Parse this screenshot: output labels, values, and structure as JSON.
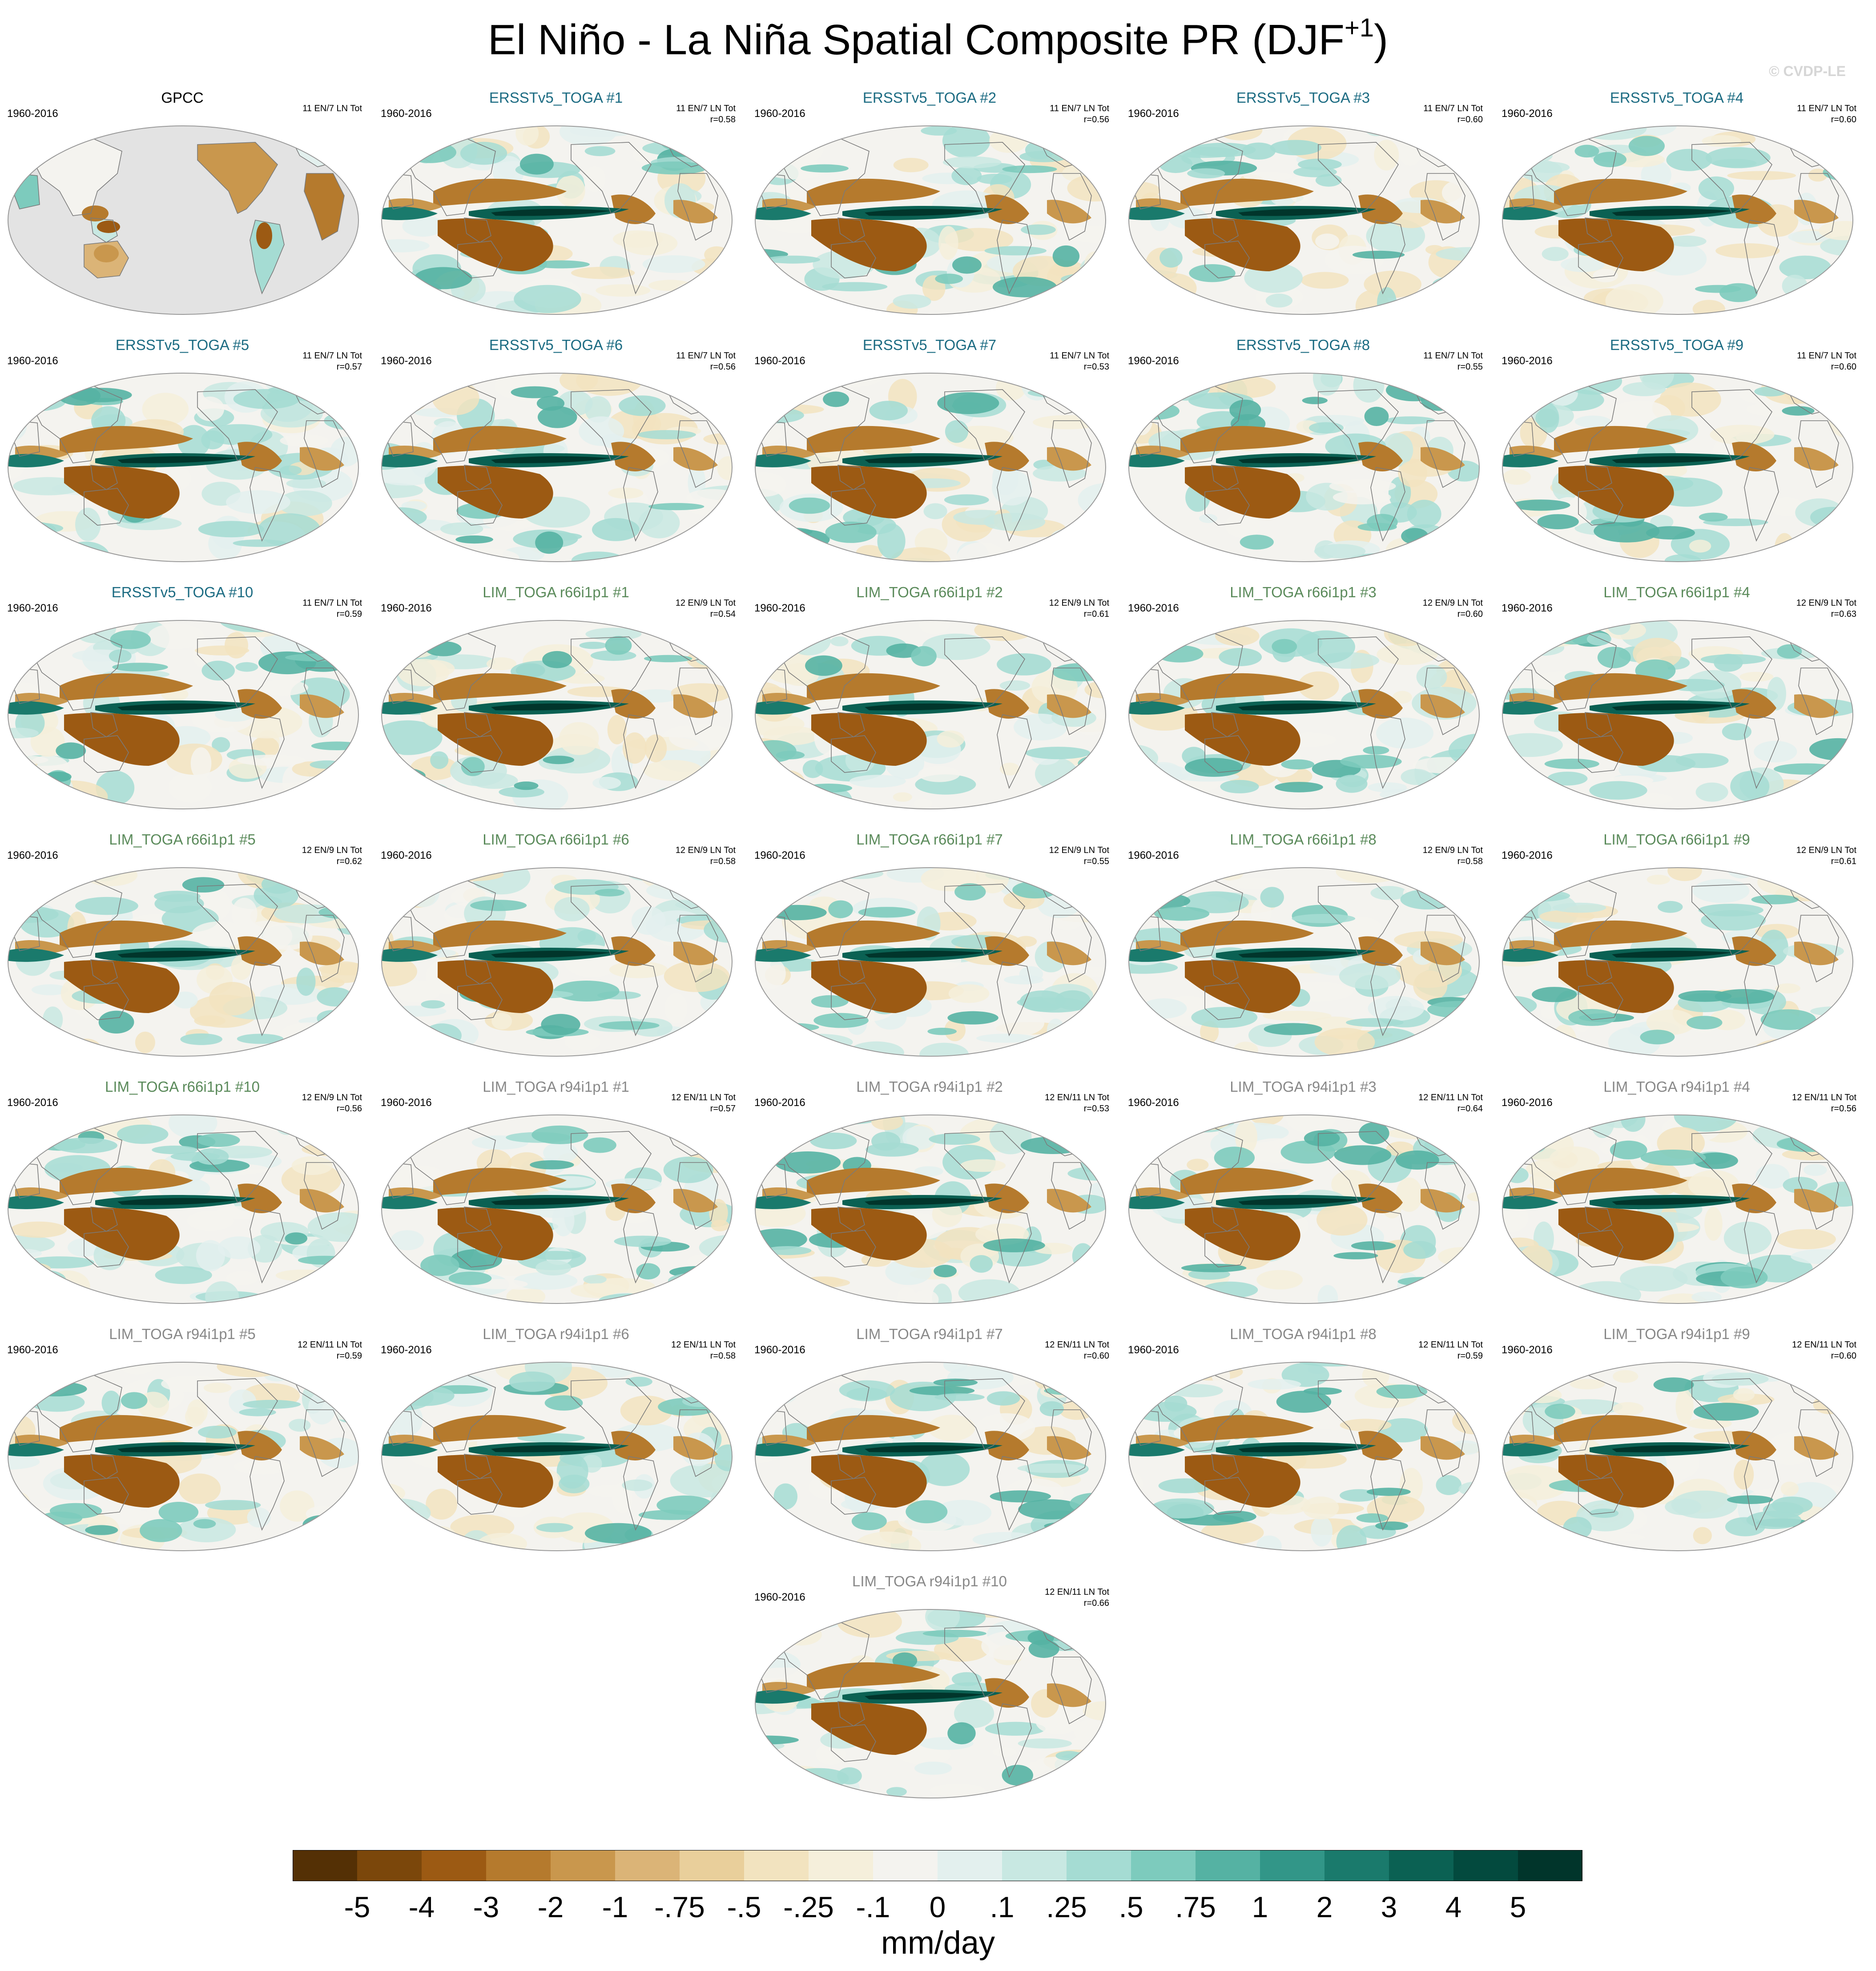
{
  "title": {
    "main": "El Niño - La Niña Spatial Composite PR (DJF",
    "superscript": "+1",
    "close": ")"
  },
  "watermark": "© CVDP-LE",
  "colors": {
    "obs_title": "#000000",
    "ersst_title": "#1b6b82",
    "lim_r66_title": "#5a8a5a",
    "lim_r94_title": "#888888",
    "ocean_missing": "#e3e3e3",
    "coastline": "#7a7a7a"
  },
  "chart_data": {
    "type": "heatmap",
    "map_projection": "global, centred on the Pacific",
    "variable": "PR",
    "season": "DJF+1",
    "colorbar": {
      "units": "mm/day",
      "levels": [
        "-5",
        "-4",
        "-3",
        "-2",
        "-1",
        "-.75",
        "-.5",
        "-.25",
        "-.1",
        "0",
        ".1",
        ".25",
        ".5",
        ".75",
        "1",
        "2",
        "3",
        "4",
        "5"
      ],
      "colors": [
        "#543005",
        "#7b470b",
        "#9c5a13",
        "#b57a2d",
        "#c9974d",
        "#dbb477",
        "#e9cf9b",
        "#f2e3bf",
        "#f5efdb",
        "#f4f3ef",
        "#e3f0ee",
        "#c8e8e2",
        "#a5dcd3",
        "#7dcbbd",
        "#55b2a3",
        "#329688",
        "#1a7a6c",
        "#0b6153",
        "#034a3e",
        "#01352b"
      ]
    },
    "panels": [
      {
        "title": "GPCC",
        "years": "1960-2016",
        "counts": "11 EN/7 LN Tot",
        "r": "",
        "kind": "obs"
      },
      {
        "title": "ERSSTv5_TOGA #1",
        "years": "1960-2016",
        "counts": "11 EN/7 LN Tot",
        "r": "r=0.58",
        "kind": "ersst"
      },
      {
        "title": "ERSSTv5_TOGA #2",
        "years": "1960-2016",
        "counts": "11 EN/7 LN Tot",
        "r": "r=0.56",
        "kind": "ersst"
      },
      {
        "title": "ERSSTv5_TOGA #3",
        "years": "1960-2016",
        "counts": "11 EN/7 LN Tot",
        "r": "r=0.60",
        "kind": "ersst"
      },
      {
        "title": "ERSSTv5_TOGA #4",
        "years": "1960-2016",
        "counts": "11 EN/7 LN Tot",
        "r": "r=0.60",
        "kind": "ersst"
      },
      {
        "title": "ERSSTv5_TOGA #5",
        "years": "1960-2016",
        "counts": "11 EN/7 LN Tot",
        "r": "r=0.57",
        "kind": "ersst"
      },
      {
        "title": "ERSSTv5_TOGA #6",
        "years": "1960-2016",
        "counts": "11 EN/7 LN Tot",
        "r": "r=0.56",
        "kind": "ersst"
      },
      {
        "title": "ERSSTv5_TOGA #7",
        "years": "1960-2016",
        "counts": "11 EN/7 LN Tot",
        "r": "r=0.53",
        "kind": "ersst"
      },
      {
        "title": "ERSSTv5_TOGA #8",
        "years": "1960-2016",
        "counts": "11 EN/7 LN Tot",
        "r": "r=0.55",
        "kind": "ersst"
      },
      {
        "title": "ERSSTv5_TOGA #9",
        "years": "1960-2016",
        "counts": "11 EN/7 LN Tot",
        "r": "r=0.60",
        "kind": "ersst"
      },
      {
        "title": "ERSSTv5_TOGA #10",
        "years": "1960-2016",
        "counts": "11 EN/7 LN Tot",
        "r": "r=0.59",
        "kind": "ersst"
      },
      {
        "title": "LIM_TOGA r66i1p1 #1",
        "years": "1960-2016",
        "counts": "12 EN/9 LN Tot",
        "r": "r=0.54",
        "kind": "r66"
      },
      {
        "title": "LIM_TOGA r66i1p1 #2",
        "years": "1960-2016",
        "counts": "12 EN/9 LN Tot",
        "r": "r=0.61",
        "kind": "r66"
      },
      {
        "title": "LIM_TOGA r66i1p1 #3",
        "years": "1960-2016",
        "counts": "12 EN/9 LN Tot",
        "r": "r=0.60",
        "kind": "r66"
      },
      {
        "title": "LIM_TOGA r66i1p1 #4",
        "years": "1960-2016",
        "counts": "12 EN/9 LN Tot",
        "r": "r=0.63",
        "kind": "r66"
      },
      {
        "title": "LIM_TOGA r66i1p1 #5",
        "years": "1960-2016",
        "counts": "12 EN/9 LN Tot",
        "r": "r=0.62",
        "kind": "r66"
      },
      {
        "title": "LIM_TOGA r66i1p1 #6",
        "years": "1960-2016",
        "counts": "12 EN/9 LN Tot",
        "r": "r=0.58",
        "kind": "r66"
      },
      {
        "title": "LIM_TOGA r66i1p1 #7",
        "years": "1960-2016",
        "counts": "12 EN/9 LN Tot",
        "r": "r=0.55",
        "kind": "r66"
      },
      {
        "title": "LIM_TOGA r66i1p1 #8",
        "years": "1960-2016",
        "counts": "12 EN/9 LN Tot",
        "r": "r=0.58",
        "kind": "r66"
      },
      {
        "title": "LIM_TOGA r66i1p1 #9",
        "years": "1960-2016",
        "counts": "12 EN/9 LN Tot",
        "r": "r=0.61",
        "kind": "r66"
      },
      {
        "title": "LIM_TOGA r66i1p1 #10",
        "years": "1960-2016",
        "counts": "12 EN/9 LN Tot",
        "r": "r=0.56",
        "kind": "r66"
      },
      {
        "title": "LIM_TOGA r94i1p1 #1",
        "years": "1960-2016",
        "counts": "12 EN/11 LN Tot",
        "r": "r=0.57",
        "kind": "r94"
      },
      {
        "title": "LIM_TOGA r94i1p1 #2",
        "years": "1960-2016",
        "counts": "12 EN/11 LN Tot",
        "r": "r=0.53",
        "kind": "r94"
      },
      {
        "title": "LIM_TOGA r94i1p1 #3",
        "years": "1960-2016",
        "counts": "12 EN/11 LN Tot",
        "r": "r=0.64",
        "kind": "r94"
      },
      {
        "title": "LIM_TOGA r94i1p1 #4",
        "years": "1960-2016",
        "counts": "12 EN/11 LN Tot",
        "r": "r=0.56",
        "kind": "r94"
      },
      {
        "title": "LIM_TOGA r94i1p1 #5",
        "years": "1960-2016",
        "counts": "12 EN/11 LN Tot",
        "r": "r=0.59",
        "kind": "r94"
      },
      {
        "title": "LIM_TOGA r94i1p1 #6",
        "years": "1960-2016",
        "counts": "12 EN/11 LN Tot",
        "r": "r=0.58",
        "kind": "r94"
      },
      {
        "title": "LIM_TOGA r94i1p1 #7",
        "years": "1960-2016",
        "counts": "12 EN/11 LN Tot",
        "r": "r=0.60",
        "kind": "r94"
      },
      {
        "title": "LIM_TOGA r94i1p1 #8",
        "years": "1960-2016",
        "counts": "12 EN/11 LN Tot",
        "r": "r=0.59",
        "kind": "r94"
      },
      {
        "title": "LIM_TOGA r94i1p1 #9",
        "years": "1960-2016",
        "counts": "12 EN/11 LN Tot",
        "r": "r=0.60",
        "kind": "r94"
      },
      {
        "title": "LIM_TOGA r94i1p1 #10",
        "years": "1960-2016",
        "counts": "12 EN/11 LN Tot",
        "r": "r=0.66",
        "kind": "r94"
      }
    ]
  }
}
